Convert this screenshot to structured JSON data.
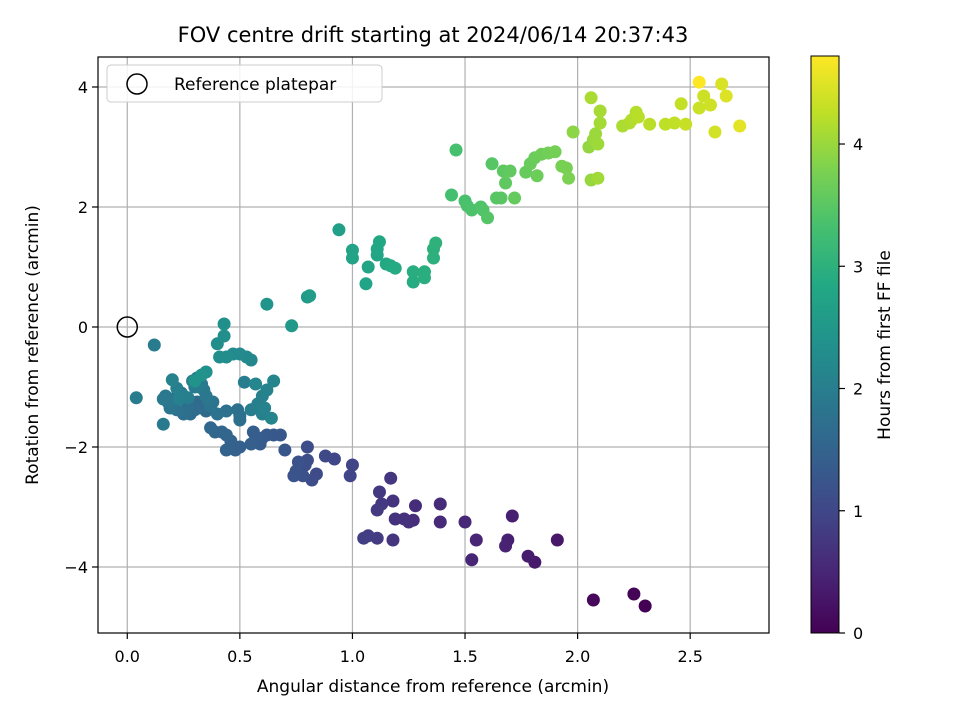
{
  "chart_data": {
    "type": "scatter",
    "title": "FOV centre drift starting at 2024/06/14 20:37:43",
    "xlabel": "Angular distance from reference (arcmin)",
    "ylabel": "Rotation from reference (arcmin)",
    "xlim": [
      -0.13,
      2.85
    ],
    "ylim": [
      -5.1,
      4.5
    ],
    "xticks": [
      0.0,
      0.5,
      1.0,
      1.5,
      2.0,
      2.5
    ],
    "xtick_labels": [
      "0.0",
      "0.5",
      "1.0",
      "1.5",
      "2.0",
      "2.5"
    ],
    "yticks": [
      -4,
      -2,
      0,
      2,
      4
    ],
    "ytick_labels": [
      "−4",
      "−2",
      "0",
      "2",
      "4"
    ],
    "grid": true,
    "legend": {
      "placement": "top-left",
      "entries": [
        "Reference platepar"
      ]
    },
    "reference": {
      "x": 0,
      "y": 0
    },
    "colorbar": {
      "label": "Hours from first FF file",
      "colormap": "viridis",
      "range": [
        0,
        4.72
      ],
      "ticks": [
        0,
        1,
        2,
        3,
        4
      ],
      "tick_labels": [
        "0",
        "1",
        "2",
        "3",
        "4"
      ]
    },
    "points": [
      [
        2.3,
        -4.65,
        0.0
      ],
      [
        2.25,
        -4.45,
        0.05
      ],
      [
        2.07,
        -4.55,
        0.1
      ],
      [
        1.91,
        -3.55,
        0.3
      ],
      [
        1.81,
        -3.92,
        0.33
      ],
      [
        1.78,
        -3.82,
        0.36
      ],
      [
        1.71,
        -3.15,
        0.4
      ],
      [
        1.69,
        -3.55,
        0.42
      ],
      [
        1.68,
        -3.65,
        0.45
      ],
      [
        1.55,
        -3.55,
        0.48
      ],
      [
        1.53,
        -3.88,
        0.5
      ],
      [
        1.5,
        -3.25,
        0.53
      ],
      [
        1.39,
        -3.25,
        0.56
      ],
      [
        1.39,
        -2.95,
        0.58
      ],
      [
        1.28,
        -2.98,
        0.6
      ],
      [
        1.27,
        -3.22,
        0.62
      ],
      [
        1.25,
        -3.25,
        0.64
      ],
      [
        1.23,
        -3.2,
        0.66
      ],
      [
        1.19,
        -3.2,
        0.68
      ],
      [
        1.18,
        -2.9,
        0.7
      ],
      [
        1.18,
        -3.55,
        0.72
      ],
      [
        1.17,
        -2.52,
        0.74
      ],
      [
        1.13,
        -2.95,
        0.76
      ],
      [
        1.12,
        -2.75,
        0.78
      ],
      [
        1.11,
        -3.05,
        0.8
      ],
      [
        1.11,
        -3.52,
        0.82
      ],
      [
        1.07,
        -3.48,
        0.84
      ],
      [
        1.05,
        -3.52,
        0.86
      ],
      [
        1.0,
        -2.3,
        0.95
      ],
      [
        0.99,
        -2.48,
        0.98
      ],
      [
        0.92,
        -2.2,
        1.0
      ],
      [
        0.88,
        -2.15,
        1.03
      ],
      [
        0.84,
        -2.45,
        1.06
      ],
      [
        0.82,
        -2.55,
        1.08
      ],
      [
        0.8,
        -2.0,
        1.1
      ],
      [
        0.8,
        -2.22,
        1.12
      ],
      [
        0.79,
        -2.3,
        1.14
      ],
      [
        0.78,
        -2.48,
        1.16
      ],
      [
        0.76,
        -2.25,
        1.18
      ],
      [
        0.75,
        -2.4,
        1.2
      ],
      [
        0.74,
        -2.48,
        1.22
      ],
      [
        0.7,
        -2.05,
        1.25
      ],
      [
        0.68,
        -1.8,
        1.28
      ],
      [
        0.65,
        -1.8,
        1.3
      ],
      [
        0.62,
        -1.8,
        1.32
      ],
      [
        0.6,
        -1.85,
        1.34
      ],
      [
        0.59,
        -1.95,
        1.36
      ],
      [
        0.57,
        -1.85,
        1.38
      ],
      [
        0.56,
        -1.75,
        1.4
      ],
      [
        0.55,
        -1.95,
        1.42
      ],
      [
        0.5,
        -2.0,
        1.44
      ],
      [
        0.48,
        -2.05,
        1.46
      ],
      [
        0.46,
        -1.9,
        1.48
      ],
      [
        0.44,
        -2.05,
        1.5
      ],
      [
        0.44,
        -1.8,
        1.52
      ],
      [
        0.42,
        -1.75,
        1.54
      ],
      [
        0.39,
        -1.75,
        1.56
      ],
      [
        0.37,
        -1.68,
        1.58
      ],
      [
        0.35,
        -1.4,
        1.6
      ],
      [
        0.33,
        -1.35,
        1.62
      ],
      [
        0.31,
        -1.25,
        1.64
      ],
      [
        0.3,
        -1.38,
        1.66
      ],
      [
        0.28,
        -1.45,
        1.68
      ],
      [
        0.27,
        -1.3,
        1.7
      ],
      [
        0.26,
        -1.2,
        1.72
      ],
      [
        0.25,
        -1.45,
        1.74
      ],
      [
        0.24,
        -1.1,
        1.76
      ],
      [
        0.22,
        -1.38,
        1.78
      ],
      [
        0.21,
        -1.3,
        1.8
      ],
      [
        0.2,
        -1.2,
        1.82
      ],
      [
        0.19,
        -1.35,
        1.84
      ],
      [
        0.18,
        -1.25,
        1.86
      ],
      [
        0.17,
        -1.15,
        1.88
      ],
      [
        0.16,
        -1.2,
        1.9
      ],
      [
        0.16,
        -1.62,
        1.92
      ],
      [
        0.12,
        -0.3,
        1.94
      ],
      [
        0.04,
        -1.18,
        1.96
      ],
      [
        0.5,
        -1.48,
        1.7
      ],
      [
        0.5,
        -1.55,
        1.72
      ],
      [
        0.49,
        -1.38,
        1.74
      ],
      [
        0.44,
        -1.4,
        1.76
      ],
      [
        0.4,
        -1.45,
        1.78
      ],
      [
        0.38,
        -1.25,
        1.8
      ],
      [
        0.37,
        -1.32,
        1.82
      ],
      [
        0.36,
        -1.22,
        1.84
      ],
      [
        0.35,
        -1.15,
        1.86
      ],
      [
        0.34,
        -1.05,
        1.88
      ],
      [
        0.33,
        -0.95,
        1.9
      ],
      [
        0.32,
        -1.0,
        1.92
      ],
      [
        0.31,
        -0.85,
        1.94
      ],
      [
        0.3,
        -1.0,
        1.96
      ],
      [
        0.29,
        -0.9,
        1.98
      ],
      [
        0.27,
        -1.18,
        2.0
      ],
      [
        0.25,
        -1.15,
        2.02
      ],
      [
        0.23,
        -1.2,
        2.04
      ],
      [
        0.22,
        -1.02,
        2.06
      ],
      [
        0.2,
        -0.88,
        2.08
      ],
      [
        0.52,
        -0.92,
        1.98
      ],
      [
        0.55,
        -1.38,
        2.0
      ],
      [
        0.58,
        -1.28,
        2.02
      ],
      [
        0.6,
        -1.45,
        2.04
      ],
      [
        0.6,
        -1.15,
        2.06
      ],
      [
        0.61,
        -1.35,
        2.08
      ],
      [
        0.62,
        -1.05,
        2.1
      ],
      [
        0.64,
        -1.52,
        2.12
      ],
      [
        0.65,
        -0.9,
        2.14
      ],
      [
        0.57,
        -0.95,
        2.16
      ],
      [
        0.55,
        -0.55,
        2.18
      ],
      [
        0.53,
        -0.5,
        2.2
      ],
      [
        0.5,
        -0.45,
        2.22
      ],
      [
        0.47,
        -0.45,
        2.24
      ],
      [
        0.44,
        -0.5,
        2.26
      ],
      [
        0.41,
        -0.5,
        2.28
      ],
      [
        0.4,
        -0.28,
        2.3
      ],
      [
        0.43,
        -0.15,
        2.32
      ],
      [
        0.43,
        0.05,
        2.34
      ],
      [
        0.35,
        -0.75,
        2.36
      ],
      [
        0.33,
        -0.8,
        2.38
      ],
      [
        0.3,
        -0.9,
        2.4
      ],
      [
        0.62,
        0.38,
        2.42
      ],
      [
        0.73,
        0.02,
        2.5
      ],
      [
        0.8,
        0.5,
        2.55
      ],
      [
        0.81,
        0.52,
        2.58
      ],
      [
        0.94,
        1.62,
        2.65
      ],
      [
        1.0,
        1.28,
        2.7
      ],
      [
        1.0,
        1.15,
        2.72
      ],
      [
        1.06,
        0.72,
        2.74
      ],
      [
        1.07,
        1.0,
        2.76
      ],
      [
        1.11,
        1.2,
        2.78
      ],
      [
        1.11,
        1.3,
        2.8
      ],
      [
        1.12,
        1.42,
        2.82
      ],
      [
        1.15,
        1.05,
        2.84
      ],
      [
        1.17,
        1.02,
        2.86
      ],
      [
        1.19,
        0.98,
        2.88
      ],
      [
        1.27,
        0.75,
        2.9
      ],
      [
        1.27,
        0.92,
        2.92
      ],
      [
        1.32,
        0.92,
        2.94
      ],
      [
        1.32,
        0.82,
        2.96
      ],
      [
        1.36,
        1.15,
        2.98
      ],
      [
        1.36,
        1.3,
        3.0
      ],
      [
        1.37,
        1.4,
        3.02
      ],
      [
        1.44,
        2.2,
        3.3
      ],
      [
        1.46,
        2.95,
        3.32
      ],
      [
        1.5,
        2.1,
        3.34
      ],
      [
        1.51,
        2.02,
        3.36
      ],
      [
        1.53,
        1.95,
        3.38
      ],
      [
        1.57,
        2.0,
        3.4
      ],
      [
        1.58,
        1.95,
        3.42
      ],
      [
        1.6,
        1.82,
        3.44
      ],
      [
        1.62,
        2.72,
        3.46
      ],
      [
        1.64,
        2.15,
        3.48
      ],
      [
        1.66,
        2.15,
        3.5
      ],
      [
        1.67,
        2.6,
        3.52
      ],
      [
        1.68,
        2.4,
        3.54
      ],
      [
        1.7,
        2.6,
        3.56
      ],
      [
        1.72,
        2.15,
        3.58
      ],
      [
        1.77,
        2.58,
        3.6
      ],
      [
        1.79,
        2.72,
        3.62
      ],
      [
        1.81,
        2.82,
        3.64
      ],
      [
        1.82,
        2.52,
        3.66
      ],
      [
        1.84,
        2.88,
        3.68
      ],
      [
        1.87,
        2.9,
        3.7
      ],
      [
        1.9,
        2.92,
        3.72
      ],
      [
        1.93,
        2.68,
        3.74
      ],
      [
        1.95,
        2.65,
        3.76
      ],
      [
        1.96,
        2.48,
        3.78
      ],
      [
        1.98,
        3.25,
        3.9
      ],
      [
        2.05,
        3.0,
        3.95
      ],
      [
        2.06,
        2.45,
        3.97
      ],
      [
        2.07,
        3.12,
        3.99
      ],
      [
        2.08,
        3.22,
        4.01
      ],
      [
        2.09,
        3.05,
        4.03
      ],
      [
        2.09,
        2.48,
        4.05
      ],
      [
        2.1,
        3.4,
        4.07
      ],
      [
        2.1,
        3.6,
        4.09
      ],
      [
        2.06,
        3.82,
        4.11
      ],
      [
        2.2,
        3.35,
        4.13
      ],
      [
        2.23,
        3.4,
        4.15
      ],
      [
        2.24,
        3.45,
        4.17
      ],
      [
        2.26,
        3.58,
        4.19
      ],
      [
        2.27,
        3.5,
        4.21
      ],
      [
        2.32,
        3.38,
        4.23
      ],
      [
        2.39,
        3.38,
        4.25
      ],
      [
        2.43,
        3.4,
        4.27
      ],
      [
        2.46,
        3.72,
        4.3
      ],
      [
        2.48,
        3.38,
        4.32
      ],
      [
        2.54,
        3.65,
        4.34
      ],
      [
        2.56,
        3.85,
        4.36
      ],
      [
        2.59,
        3.7,
        4.38
      ],
      [
        2.61,
        3.25,
        4.4
      ],
      [
        2.64,
        4.05,
        4.45
      ],
      [
        2.66,
        3.85,
        4.48
      ],
      [
        2.72,
        3.35,
        4.52
      ],
      [
        2.54,
        4.08,
        4.72
      ]
    ]
  }
}
